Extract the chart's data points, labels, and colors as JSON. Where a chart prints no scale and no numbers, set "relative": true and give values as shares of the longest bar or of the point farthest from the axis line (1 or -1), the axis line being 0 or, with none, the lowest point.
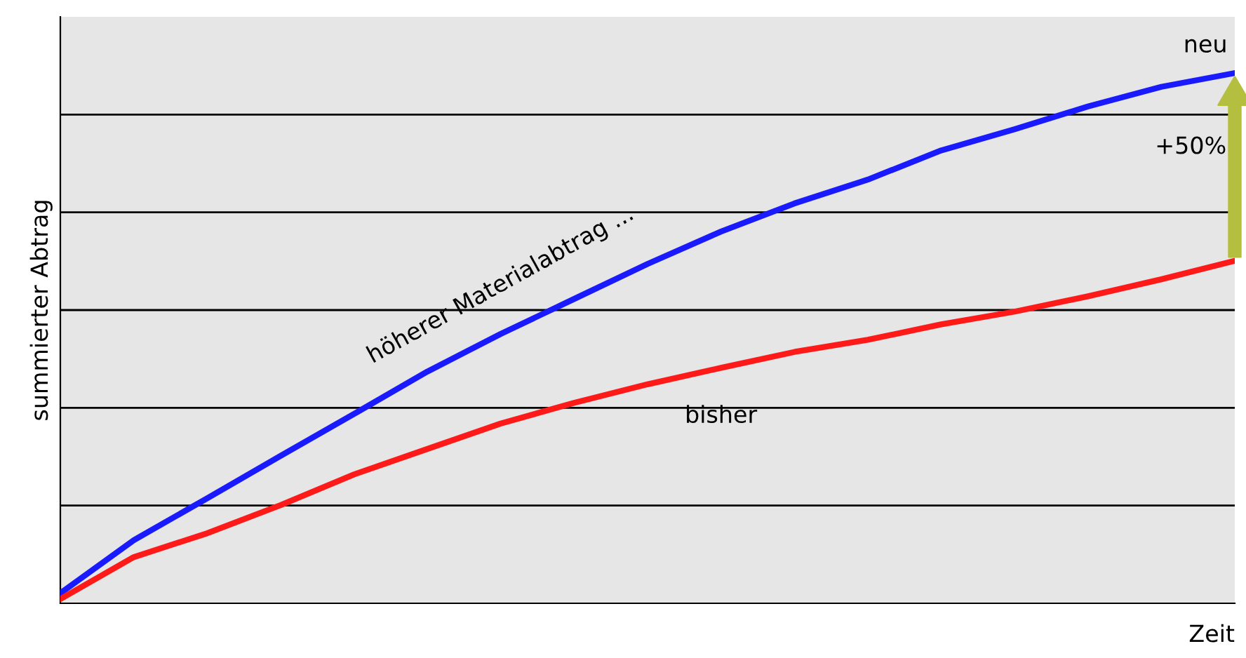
{
  "chart_data": {
    "type": "line",
    "relative": true,
    "xlabel": "Zeit",
    "ylabel": "summierter Abtrag",
    "grid": "y",
    "legend": false,
    "marker": "none",
    "line_style": "solid",
    "categories": [
      null,
      null,
      null,
      null,
      null,
      null,
      null,
      null,
      null,
      null,
      null,
      null,
      null,
      null,
      null,
      null,
      null
    ],
    "series": [
      {
        "name": "neu",
        "color": "#1a1aff",
        "values": [
          0.019,
          0.119,
          0.198,
          0.278,
          0.357,
          0.437,
          0.508,
          0.574,
          0.64,
          0.701,
          0.754,
          0.799,
          0.854,
          0.894,
          0.937,
          0.974,
          1.0
        ]
      },
      {
        "name": "bisher",
        "color": "#ff1a1a",
        "values": [
          0.008,
          0.087,
          0.132,
          0.185,
          0.243,
          0.291,
          0.339,
          0.378,
          0.413,
          0.444,
          0.474,
          0.497,
          0.526,
          0.55,
          0.579,
          0.611,
          0.646
        ]
      }
    ],
    "annotations": [
      "höherer Materialabtrag ...",
      "+50%"
    ]
  }
}
